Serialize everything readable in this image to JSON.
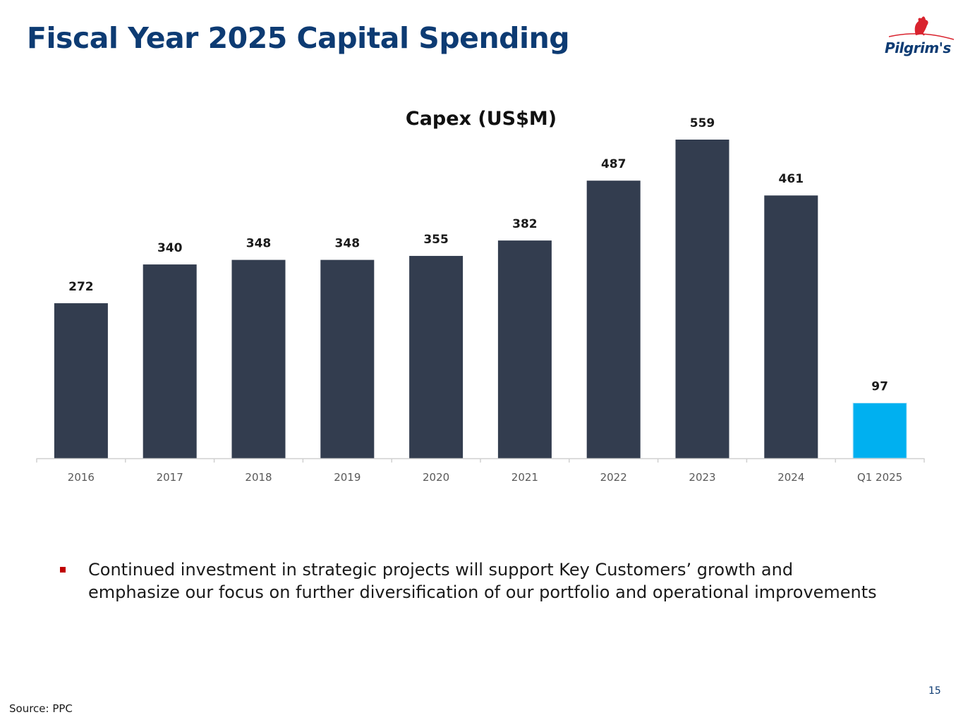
{
  "slide": {
    "title": "Fiscal Year 2025 Capital Spending",
    "logo_text": "Pilgrim's",
    "page_number": "15",
    "source": "Source: PPC"
  },
  "bullets": [
    "Continued investment in strategic projects will support Key Customers’ growth and emphasize our focus on further diversification of our portfolio and operational improvements"
  ],
  "colors": {
    "title": "#0d3b73",
    "bar": "#333d4f",
    "bar_highlight": "#00b0f0",
    "axis": "#d0d0d0",
    "bullet": "#c00000",
    "logo_accent": "#d9232e"
  },
  "chart_data": {
    "type": "bar",
    "title": "Capex (US$M)",
    "categories": [
      "2016",
      "2017",
      "2018",
      "2019",
      "2020",
      "2021",
      "2022",
      "2023",
      "2024",
      "Q1 2025"
    ],
    "values": [
      272,
      340,
      348,
      348,
      355,
      382,
      487,
      559,
      461,
      97
    ],
    "data_labels": [
      "272",
      "340",
      "348",
      "348",
      "355",
      "382",
      "487",
      "559",
      "461",
      "97"
    ],
    "highlight_categories": [
      "Q1 2025"
    ],
    "xlabel": "",
    "ylabel": "",
    "ylim": [
      0,
      559
    ],
    "grid": false,
    "legend": false
  }
}
